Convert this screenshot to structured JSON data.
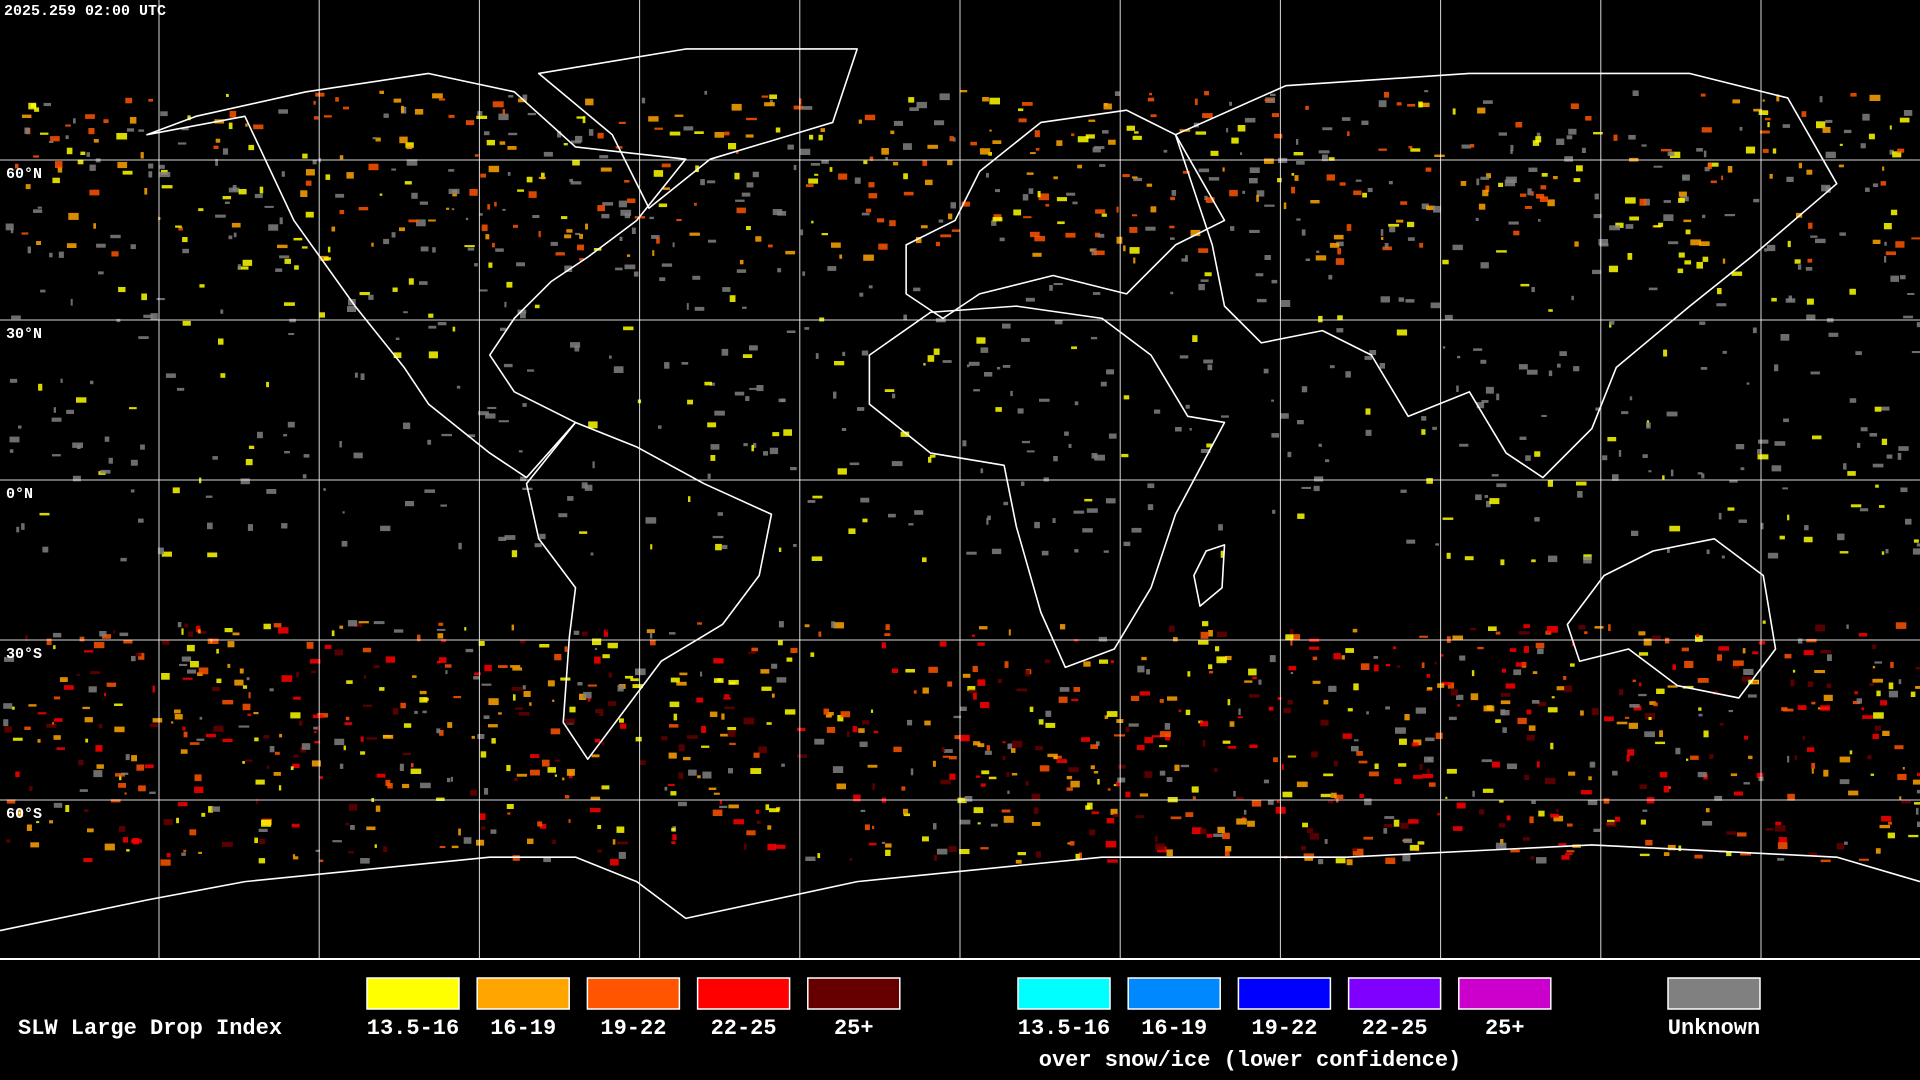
{
  "header": {
    "timestamp": "2025.259 02:00 UTC"
  },
  "map": {
    "latitude_labels": [
      "60°N",
      "30°N",
      "0°N",
      "30°S",
      "60°S"
    ]
  },
  "legend": {
    "title": "SLW Large Drop Index",
    "items": [
      {
        "label": "13.5-16",
        "color": "#ffff00"
      },
      {
        "label": "16-19",
        "color": "#ffa500"
      },
      {
        "label": "19-22",
        "color": "#ff5500"
      },
      {
        "label": "22-25",
        "color": "#ff0000"
      },
      {
        "label": "25+",
        "color": "#660000"
      }
    ],
    "snow_ice_items": [
      {
        "label": "13.5-16",
        "color": "#00ffff"
      },
      {
        "label": "16-19",
        "color": "#0088ff"
      },
      {
        "label": "19-22",
        "color": "#0000ff"
      },
      {
        "label": "22-25",
        "color": "#7f00ff"
      },
      {
        "label": "25+",
        "color": "#cc00cc"
      }
    ],
    "snow_ice_note": "over snow/ice (lower confidence)",
    "unknown": {
      "label": "Unknown",
      "color": "#808080"
    }
  }
}
